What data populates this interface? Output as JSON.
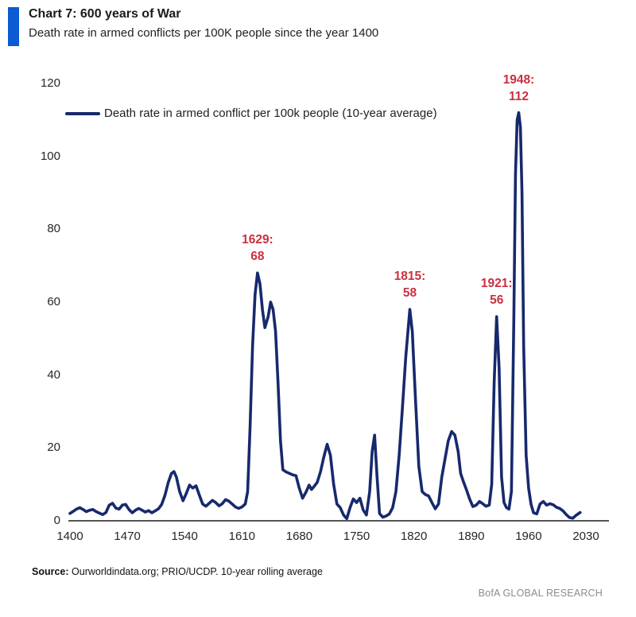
{
  "header": {
    "title": "Chart 7: 600 years of War",
    "subtitle": "Death rate in armed conflicts per 100K people since the year 1400"
  },
  "footer": {
    "source_label": "Source:",
    "source_text": " Ourworldindata.org; PRIO/UCDP. 10-year rolling average",
    "brand": "BofA GLOBAL RESEARCH"
  },
  "colors": {
    "line": "#17296d",
    "accent_bar": "#0c5ad4",
    "annotation": "#c9303e",
    "axis": "#555555"
  },
  "chart_data": {
    "type": "line",
    "title": "Chart 7: 600 years of War",
    "subtitle": "Death rate in armed conflicts per 100K people since the year 1400",
    "xlim": [
      1400,
      2030
    ],
    "ylim": [
      0,
      120
    ],
    "x_ticks": [
      1400,
      1470,
      1540,
      1610,
      1680,
      1750,
      1820,
      1890,
      1960,
      2030
    ],
    "y_ticks": [
      0,
      20,
      40,
      60,
      80,
      100,
      120
    ],
    "grid": false,
    "legend_position": "top-left",
    "series": [
      {
        "name": "Death rate in armed conflict per 100k people (10-year average)",
        "points": [
          [
            1400,
            2
          ],
          [
            1404,
            2.6
          ],
          [
            1408,
            3.2
          ],
          [
            1412,
            3.6
          ],
          [
            1416,
            3.1
          ],
          [
            1420,
            2.5
          ],
          [
            1424,
            2.9
          ],
          [
            1428,
            3.1
          ],
          [
            1432,
            2.5
          ],
          [
            1436,
            2.1
          ],
          [
            1440,
            1.7
          ],
          [
            1444,
            2.3
          ],
          [
            1448,
            4.3
          ],
          [
            1452,
            4.8
          ],
          [
            1456,
            3.5
          ],
          [
            1460,
            3.2
          ],
          [
            1464,
            4.3
          ],
          [
            1468,
            4.5
          ],
          [
            1472,
            3.1
          ],
          [
            1476,
            2.2
          ],
          [
            1480,
            2.9
          ],
          [
            1484,
            3.4
          ],
          [
            1488,
            2.9
          ],
          [
            1492,
            2.4
          ],
          [
            1496,
            2.8
          ],
          [
            1500,
            2.2
          ],
          [
            1504,
            2.7
          ],
          [
            1508,
            3.3
          ],
          [
            1512,
            4.5
          ],
          [
            1516,
            7
          ],
          [
            1520,
            10.5
          ],
          [
            1524,
            13
          ],
          [
            1527,
            13.5
          ],
          [
            1530,
            12
          ],
          [
            1534,
            8
          ],
          [
            1538,
            5.5
          ],
          [
            1542,
            7.5
          ],
          [
            1546,
            9.8
          ],
          [
            1550,
            9
          ],
          [
            1554,
            9.6
          ],
          [
            1558,
            7
          ],
          [
            1562,
            4.6
          ],
          [
            1566,
            4
          ],
          [
            1570,
            4.8
          ],
          [
            1574,
            5.6
          ],
          [
            1578,
            5
          ],
          [
            1582,
            4.1
          ],
          [
            1586,
            4.7
          ],
          [
            1590,
            5.8
          ],
          [
            1594,
            5.4
          ],
          [
            1598,
            4.6
          ],
          [
            1602,
            3.8
          ],
          [
            1606,
            3.4
          ],
          [
            1610,
            3.8
          ],
          [
            1614,
            4.6
          ],
          [
            1617,
            8
          ],
          [
            1620,
            26
          ],
          [
            1623,
            48
          ],
          [
            1626,
            62
          ],
          [
            1629,
            68
          ],
          [
            1632,
            65
          ],
          [
            1635,
            58
          ],
          [
            1638,
            53
          ],
          [
            1642,
            56
          ],
          [
            1645,
            60
          ],
          [
            1648,
            58
          ],
          [
            1651,
            52
          ],
          [
            1654,
            38
          ],
          [
            1657,
            22
          ],
          [
            1660,
            14
          ],
          [
            1664,
            13.4
          ],
          [
            1668,
            13
          ],
          [
            1672,
            12.6
          ],
          [
            1676,
            12.4
          ],
          [
            1680,
            9
          ],
          [
            1684,
            6.2
          ],
          [
            1688,
            7.8
          ],
          [
            1692,
            9.8
          ],
          [
            1695,
            8.6
          ],
          [
            1698,
            9.4
          ],
          [
            1702,
            10.6
          ],
          [
            1706,
            13.5
          ],
          [
            1710,
            17.5
          ],
          [
            1714,
            21
          ],
          [
            1718,
            18
          ],
          [
            1722,
            10
          ],
          [
            1726,
            4.6
          ],
          [
            1730,
            3.6
          ],
          [
            1734,
            1.6
          ],
          [
            1738,
            0.6
          ],
          [
            1742,
            3.6
          ],
          [
            1746,
            6
          ],
          [
            1750,
            5
          ],
          [
            1754,
            6.2
          ],
          [
            1758,
            3
          ],
          [
            1762,
            1.6
          ],
          [
            1766,
            8
          ],
          [
            1769,
            19
          ],
          [
            1772,
            23.5
          ],
          [
            1775,
            12
          ],
          [
            1778,
            2
          ],
          [
            1782,
            1
          ],
          [
            1786,
            1.3
          ],
          [
            1790,
            1.9
          ],
          [
            1794,
            3.6
          ],
          [
            1798,
            8
          ],
          [
            1802,
            18
          ],
          [
            1806,
            31
          ],
          [
            1810,
            45
          ],
          [
            1815,
            58
          ],
          [
            1818,
            52
          ],
          [
            1822,
            33
          ],
          [
            1826,
            15
          ],
          [
            1830,
            8
          ],
          [
            1834,
            7.2
          ],
          [
            1838,
            6.8
          ],
          [
            1842,
            5
          ],
          [
            1846,
            3.3
          ],
          [
            1850,
            4.6
          ],
          [
            1854,
            12
          ],
          [
            1858,
            17
          ],
          [
            1862,
            22
          ],
          [
            1866,
            24.5
          ],
          [
            1870,
            23.5
          ],
          [
            1874,
            19
          ],
          [
            1877,
            13
          ],
          [
            1880,
            11
          ],
          [
            1884,
            8.6
          ],
          [
            1888,
            6
          ],
          [
            1892,
            3.9
          ],
          [
            1896,
            4.3
          ],
          [
            1900,
            5.3
          ],
          [
            1904,
            4.7
          ],
          [
            1908,
            4
          ],
          [
            1912,
            4.3
          ],
          [
            1915,
            10
          ],
          [
            1918,
            38
          ],
          [
            1921,
            56
          ],
          [
            1924,
            42
          ],
          [
            1927,
            12
          ],
          [
            1930,
            5
          ],
          [
            1933,
            3.6
          ],
          [
            1936,
            3.2
          ],
          [
            1939,
            8
          ],
          [
            1942,
            55
          ],
          [
            1944,
            95
          ],
          [
            1946,
            110
          ],
          [
            1948,
            112
          ],
          [
            1950,
            108
          ],
          [
            1952,
            90
          ],
          [
            1954,
            48
          ],
          [
            1957,
            18
          ],
          [
            1960,
            9
          ],
          [
            1963,
            4.5
          ],
          [
            1966,
            2.2
          ],
          [
            1970,
            1.9
          ],
          [
            1974,
            4.6
          ],
          [
            1978,
            5.3
          ],
          [
            1982,
            4.3
          ],
          [
            1986,
            4.7
          ],
          [
            1990,
            4.4
          ],
          [
            1994,
            3.7
          ],
          [
            1998,
            3.4
          ],
          [
            2002,
            2.7
          ],
          [
            2006,
            1.7
          ],
          [
            2010,
            0.9
          ],
          [
            2014,
            0.7
          ],
          [
            2018,
            1.5
          ],
          [
            2023,
            2.3
          ]
        ]
      }
    ],
    "annotations": [
      {
        "year": 1629,
        "value": 68,
        "line1": "1629:",
        "line2": "68"
      },
      {
        "year": 1815,
        "value": 58,
        "line1": "1815:",
        "line2": "58"
      },
      {
        "year": 1921,
        "value": 56,
        "line1": "1921:",
        "line2": "56"
      },
      {
        "year": 1948,
        "value": 112,
        "line1": "1948:",
        "line2": "112"
      }
    ]
  }
}
